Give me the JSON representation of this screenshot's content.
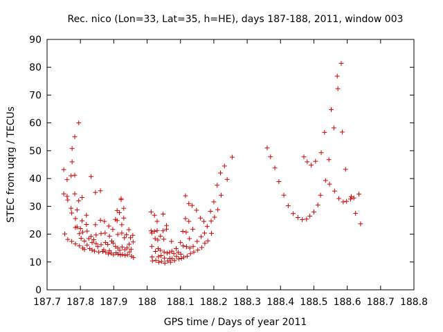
{
  "chart_data": {
    "type": "scatter",
    "title": "Rec. nico (Lon=33, Lat=35, h=HE), days 187-188, 2011, window 003",
    "xlabel": "GPS time / Days of year 2011",
    "ylabel": "STEC from uqrg / TECUs",
    "xlim": [
      187.7,
      188.8
    ],
    "ylim": [
      0,
      90
    ],
    "xticks": [
      "187.7",
      "187.8",
      "187.9",
      "188",
      "188.1",
      "188.2",
      "188.3",
      "188.4",
      "188.5",
      "188.6",
      "188.7",
      "188.8"
    ],
    "yticks": [
      "0",
      "10",
      "20",
      "30",
      "40",
      "50",
      "60",
      "70",
      "80",
      "90"
    ],
    "grid": false,
    "legend": "none",
    "marker": "+",
    "color": "#cc0000",
    "series": [
      {
        "points": [
          [
            187.75,
            43.2
          ],
          [
            187.75,
            34.5
          ],
          [
            187.753,
            20.1
          ],
          [
            187.76,
            39.6
          ],
          [
            187.76,
            33.6
          ],
          [
            187.762,
            32.3
          ],
          [
            187.762,
            18.1
          ],
          [
            187.772,
            41.0
          ],
          [
            187.772,
            29.3
          ],
          [
            187.774,
            27.6
          ],
          [
            187.774,
            17.4
          ],
          [
            187.775,
            46.0
          ],
          [
            187.775,
            50.8
          ],
          [
            187.783,
            55.0
          ],
          [
            187.783,
            41.2
          ],
          [
            187.783,
            34.5
          ],
          [
            187.785,
            25.6
          ],
          [
            187.785,
            22.4
          ],
          [
            187.785,
            16.5
          ],
          [
            187.79,
            28.7
          ],
          [
            187.79,
            22.6
          ],
          [
            187.795,
            60.0
          ],
          [
            187.795,
            32.0
          ],
          [
            187.797,
            20.2
          ],
          [
            187.797,
            15.8
          ],
          [
            187.8,
            22.0
          ],
          [
            187.802,
            18.5
          ],
          [
            187.805,
            33.2
          ],
          [
            187.805,
            24.8
          ],
          [
            187.807,
            20.7
          ],
          [
            187.807,
            15.0
          ],
          [
            187.812,
            17.5
          ],
          [
            187.812,
            14.5
          ],
          [
            187.818,
            26.8
          ],
          [
            187.818,
            23.5
          ],
          [
            187.82,
            21.1
          ],
          [
            187.82,
            16.1
          ],
          [
            187.825,
            18.4
          ],
          [
            187.828,
            14.8
          ],
          [
            187.832,
            40.7
          ],
          [
            187.832,
            19.2
          ],
          [
            187.835,
            17.0
          ],
          [
            187.835,
            14.3
          ],
          [
            187.84,
            18.0
          ],
          [
            187.842,
            13.9
          ],
          [
            187.845,
            35.0
          ],
          [
            187.845,
            23.4
          ],
          [
            187.847,
            19.7
          ],
          [
            187.847,
            16.6
          ],
          [
            187.852,
            15.5
          ],
          [
            187.855,
            13.6
          ],
          [
            187.86,
            35.6
          ],
          [
            187.86,
            25.0
          ],
          [
            187.862,
            20.2
          ],
          [
            187.862,
            16.2
          ],
          [
            187.867,
            13.8
          ],
          [
            187.87,
            14.4
          ],
          [
            187.872,
            24.6
          ],
          [
            187.874,
            20.4
          ],
          [
            187.875,
            17.0
          ],
          [
            187.876,
            13.5
          ],
          [
            187.882,
            16.3
          ],
          [
            187.884,
            12.9
          ],
          [
            187.885,
            22.9
          ],
          [
            187.887,
            19.3
          ],
          [
            187.887,
            14.1
          ],
          [
            187.892,
            13.2
          ],
          [
            187.894,
            17.5
          ],
          [
            187.897,
            21.7
          ],
          [
            187.898,
            16.8
          ],
          [
            187.899,
            12.6
          ],
          [
            187.905,
            25.3
          ],
          [
            187.905,
            15.6
          ],
          [
            187.907,
            13.3
          ],
          [
            187.91,
            28.5
          ],
          [
            187.91,
            24.9
          ],
          [
            187.912,
            19.9
          ],
          [
            187.912,
            15.0
          ],
          [
            187.913,
            12.8
          ],
          [
            187.917,
            27.7
          ],
          [
            187.918,
            14.2
          ],
          [
            187.92,
            12.5
          ],
          [
            187.922,
            32.4
          ],
          [
            187.922,
            32.8
          ],
          [
            187.924,
            23.4
          ],
          [
            187.924,
            20.4
          ],
          [
            187.925,
            15.4
          ],
          [
            187.926,
            12.7
          ],
          [
            187.93,
            29.3
          ],
          [
            187.93,
            25.8
          ],
          [
            187.932,
            18.7
          ],
          [
            187.933,
            14.4
          ],
          [
            187.934,
            12.4
          ],
          [
            187.938,
            19.8
          ],
          [
            187.94,
            15.1
          ],
          [
            187.941,
            12.6
          ],
          [
            187.945,
            21.6
          ],
          [
            187.946,
            16.4
          ],
          [
            187.947,
            13.6
          ],
          [
            187.95,
            18.7
          ],
          [
            187.952,
            14.6
          ],
          [
            187.953,
            12.1
          ],
          [
            187.957,
            19.6
          ],
          [
            187.958,
            17.2
          ],
          [
            187.959,
            11.6
          ],
          [
            188.012,
            28.0
          ],
          [
            188.012,
            21.2
          ],
          [
            188.014,
            20.4
          ],
          [
            188.014,
            15.6
          ],
          [
            188.015,
            11.8
          ],
          [
            188.016,
            10.4
          ],
          [
            188.022,
            26.8
          ],
          [
            188.022,
            21.0
          ],
          [
            188.024,
            18.4
          ],
          [
            188.025,
            13.8
          ],
          [
            188.026,
            10.6
          ],
          [
            188.03,
            24.6
          ],
          [
            188.03,
            21.3
          ],
          [
            188.032,
            17.9
          ],
          [
            188.033,
            14.8
          ],
          [
            188.034,
            11.9
          ],
          [
            188.035,
            9.9
          ],
          [
            188.04,
            19.3
          ],
          [
            188.04,
            14.2
          ],
          [
            188.042,
            12.3
          ],
          [
            188.043,
            10.2
          ],
          [
            188.048,
            27.2
          ],
          [
            188.048,
            21.2
          ],
          [
            188.05,
            18.2
          ],
          [
            188.051,
            13.6
          ],
          [
            188.052,
            11.4
          ],
          [
            188.053,
            9.6
          ],
          [
            188.058,
            23.1
          ],
          [
            188.058,
            21.8
          ],
          [
            188.06,
            13.2
          ],
          [
            188.062,
            10.4
          ],
          [
            188.067,
            13.4
          ],
          [
            188.068,
            11.3
          ],
          [
            188.07,
            9.9
          ],
          [
            188.073,
            17.4
          ],
          [
            188.074,
            13.9
          ],
          [
            188.075,
            11.2
          ],
          [
            188.08,
            13.0
          ],
          [
            188.082,
            10.5
          ],
          [
            188.087,
            14.8
          ],
          [
            188.088,
            12.0
          ],
          [
            188.093,
            13.5
          ],
          [
            188.095,
            11.1
          ],
          [
            188.1,
            17.0
          ],
          [
            188.101,
            12.8
          ],
          [
            188.103,
            11.3
          ],
          [
            188.107,
            21.0
          ],
          [
            188.108,
            15.8
          ],
          [
            188.11,
            11.7
          ],
          [
            188.115,
            33.8
          ],
          [
            188.115,
            25.6
          ],
          [
            188.117,
            20.7
          ],
          [
            188.118,
            15.5
          ],
          [
            188.12,
            12.1
          ],
          [
            188.125,
            31.0
          ],
          [
            188.125,
            24.6
          ],
          [
            188.127,
            18.4
          ],
          [
            188.128,
            15.0
          ],
          [
            188.13,
            13.0
          ],
          [
            188.135,
            30.3
          ],
          [
            188.137,
            21.8
          ],
          [
            188.138,
            15.6
          ],
          [
            188.14,
            13.6
          ],
          [
            188.148,
            28.6
          ],
          [
            188.15,
            17.4
          ],
          [
            188.152,
            14.3
          ],
          [
            188.16,
            25.8
          ],
          [
            188.162,
            19.1
          ],
          [
            188.164,
            15.2
          ],
          [
            188.17,
            24.6
          ],
          [
            188.172,
            20.4
          ],
          [
            188.173,
            16.7
          ],
          [
            188.18,
            22.8
          ],
          [
            188.182,
            17.6
          ],
          [
            188.19,
            28.2
          ],
          [
            188.192,
            24.7
          ],
          [
            188.193,
            20.3
          ],
          [
            188.2,
            31.6
          ],
          [
            188.202,
            26.1
          ],
          [
            188.21,
            37.6
          ],
          [
            188.212,
            28.8
          ],
          [
            188.22,
            42.0
          ],
          [
            188.222,
            34.0
          ],
          [
            188.232,
            44.5
          ],
          [
            188.24,
            39.7
          ],
          [
            188.255,
            47.7
          ],
          [
            188.36,
            51.0
          ],
          [
            188.37,
            47.8
          ],
          [
            188.383,
            43.8
          ],
          [
            188.395,
            38.9
          ],
          [
            188.41,
            34.0
          ],
          [
            188.423,
            30.2
          ],
          [
            188.438,
            27.4
          ],
          [
            188.452,
            26.0
          ],
          [
            188.465,
            25.2
          ],
          [
            188.478,
            25.4
          ],
          [
            188.488,
            26.5
          ],
          [
            188.5,
            28.0
          ],
          [
            188.47,
            47.8
          ],
          [
            188.48,
            46.0
          ],
          [
            188.492,
            44.8
          ],
          [
            188.505,
            46.2
          ],
          [
            188.512,
            30.5
          ],
          [
            188.52,
            34.0
          ],
          [
            188.522,
            49.3
          ],
          [
            188.532,
            56.6
          ],
          [
            188.535,
            39.3
          ],
          [
            188.545,
            46.8
          ],
          [
            188.547,
            38.0
          ],
          [
            188.552,
            64.8
          ],
          [
            188.56,
            58.2
          ],
          [
            188.562,
            35.5
          ],
          [
            188.57,
            76.8
          ],
          [
            188.572,
            72.3
          ],
          [
            188.575,
            32.8
          ],
          [
            188.582,
            81.4
          ],
          [
            188.585,
            56.7
          ],
          [
            188.588,
            31.6
          ],
          [
            188.595,
            43.3
          ],
          [
            188.598,
            31.8
          ],
          [
            188.61,
            32.6
          ],
          [
            188.612,
            33.5
          ],
          [
            188.62,
            33.0
          ],
          [
            188.625,
            27.5
          ],
          [
            188.635,
            34.4
          ],
          [
            188.64,
            23.7
          ]
        ]
      }
    ]
  }
}
